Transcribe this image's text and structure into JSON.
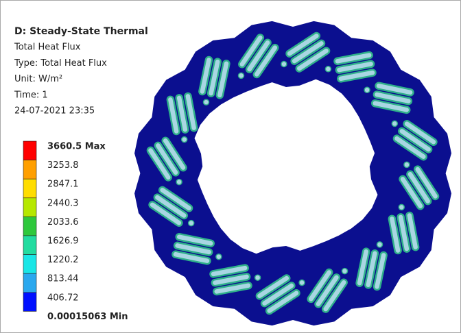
{
  "header": {
    "title": "D: Steady-State Thermal",
    "lines": [
      "Total Heat Flux",
      "Type: Total Heat Flux",
      "Unit: W/m²",
      "Time: 1",
      "24-07-2021 23:35"
    ]
  },
  "legend": {
    "labels": [
      "3660.5 Max",
      "3253.8",
      "2847.1",
      "2440.3",
      "2033.6",
      "1626.9",
      "1220.2",
      "813.44",
      "406.72",
      "0.00015063 Min"
    ],
    "colors": [
      "#ff0000",
      "#ff9f00",
      "#ffdd00",
      "#b6e800",
      "#2ec83c",
      "#22dca0",
      "#19e6e6",
      "#2aa8ee",
      "#0010ff"
    ]
  }
}
